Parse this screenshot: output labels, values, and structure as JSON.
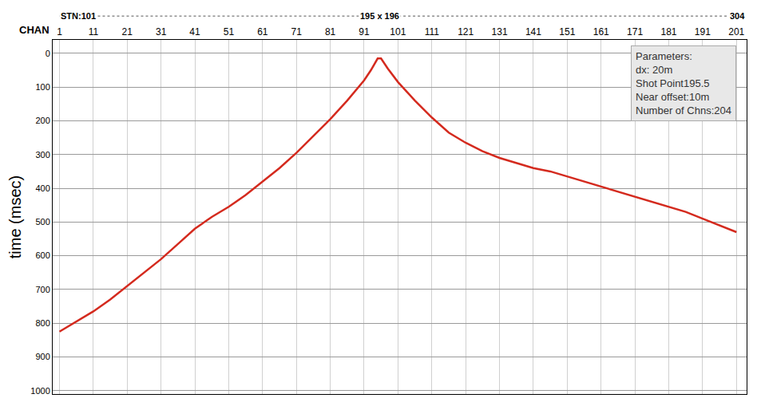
{
  "chart_data": {
    "type": "line",
    "xlabel": "CHAN",
    "ylabel": "time (msec)",
    "stations": [
      {
        "label": "STN:101",
        "channel": 1
      },
      {
        "label": "195 x 196",
        "channel": 95.5
      },
      {
        "label": "304",
        "channel": 204
      }
    ],
    "parameters": [
      "Parameters:",
      "dx: 20m",
      "Shot Point195.5",
      "Near offset:10m",
      "Number of Chns:204"
    ],
    "x": [
      1,
      6,
      11,
      16,
      21,
      26,
      31,
      36,
      41,
      46,
      51,
      56,
      61,
      66,
      71,
      76,
      81,
      86,
      91,
      93,
      95,
      96,
      98,
      101,
      106,
      111,
      116,
      121,
      126,
      131,
      136,
      141,
      146,
      151,
      156,
      161,
      166,
      171,
      176,
      181,
      186,
      191,
      196,
      201
    ],
    "series": [
      {
        "color": "#d42a1e",
        "line_style": "solid",
        "values": [
          825,
          795,
          765,
          730,
          690,
          650,
          610,
          565,
          520,
          485,
          455,
          420,
          380,
          340,
          295,
          245,
          195,
          140,
          80,
          50,
          15,
          15,
          45,
          85,
          140,
          190,
          235,
          265,
          290,
          310,
          325,
          340,
          350,
          365,
          380,
          395,
          410,
          425,
          440,
          455,
          470,
          490,
          510,
          530
        ]
      }
    ],
    "xlim": [
      -1,
      204
    ],
    "xticks": [
      1,
      11,
      21,
      31,
      41,
      51,
      61,
      71,
      81,
      91,
      101,
      111,
      121,
      131,
      141,
      151,
      161,
      171,
      181,
      191,
      201
    ],
    "ylim": [
      1010,
      -40
    ],
    "yticks": [
      0,
      100,
      200,
      300,
      400,
      500,
      600,
      700,
      800,
      900,
      1000
    ],
    "grid": true
  }
}
